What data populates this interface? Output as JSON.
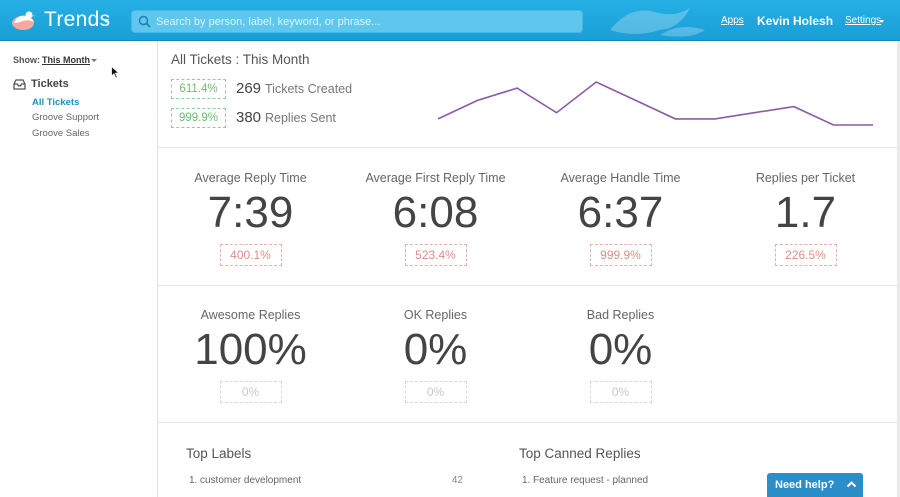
{
  "header": {
    "app_title": "Trends",
    "search_placeholder": "Search by person, label, keyword, or phrase...",
    "apps_link": "Apps",
    "user_name": "Kevin Holesh",
    "settings_link": "Settings",
    "brand_color": "#1ea6dd"
  },
  "sidebar": {
    "show_label": "Show:",
    "show_value": "This Month",
    "section_title": "Tickets",
    "items": [
      {
        "label": "All Tickets",
        "active": true
      },
      {
        "label": "Groove Support",
        "active": false
      },
      {
        "label": "Groove Sales",
        "active": false
      }
    ]
  },
  "summary": {
    "title": "All Tickets : This Month",
    "created_pct": "611.4%",
    "created_count": "269",
    "created_label": "Tickets Created",
    "replies_pct": "999.9%",
    "replies_count": "380",
    "replies_label": "Replies Sent"
  },
  "metrics_row1": [
    {
      "label": "Average Reply Time",
      "value": "7:39",
      "pct": "400.1%"
    },
    {
      "label": "Average First Reply Time",
      "value": "6:08",
      "pct": "523.4%"
    },
    {
      "label": "Average Handle Time",
      "value": "6:37",
      "pct": "999.9%"
    },
    {
      "label": "Replies per Ticket",
      "value": "1.7",
      "pct": "226.5%"
    }
  ],
  "metrics_row2": [
    {
      "label": "Awesome Replies",
      "value": "100%",
      "pct": "0%"
    },
    {
      "label": "OK Replies",
      "value": "0%",
      "pct": "0%"
    },
    {
      "label": "Bad Replies",
      "value": "0%",
      "pct": "0%"
    }
  ],
  "top_labels": {
    "title": "Top Labels",
    "rows": [
      {
        "rank": "1.",
        "name": "customer development",
        "count": "42"
      }
    ]
  },
  "top_canned": {
    "title": "Top Canned Replies",
    "rows": [
      {
        "rank": "1.",
        "name": "Feature request - planned"
      }
    ]
  },
  "help": {
    "label": "Need help?"
  },
  "chart_data": {
    "type": "line",
    "series": [
      {
        "values": [
          2,
          5,
          7,
          3,
          8,
          5,
          2,
          2,
          3,
          4,
          1,
          1
        ]
      }
    ],
    "color": "#8b5aa6"
  }
}
